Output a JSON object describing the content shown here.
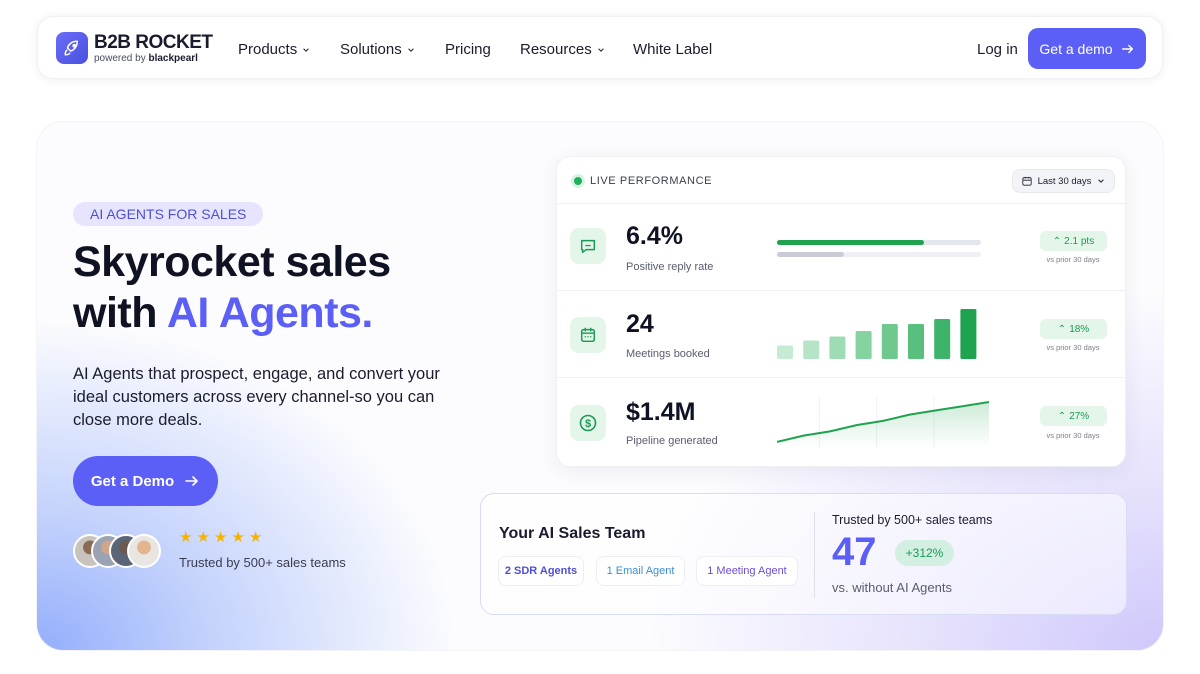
{
  "nav": {
    "logo_title": "B2B ROCKET",
    "logo_sub_prefix": "powered by ",
    "logo_sub_brand": "blackpearl",
    "items": [
      {
        "label": "Products",
        "dropdown": true
      },
      {
        "label": "Solutions",
        "dropdown": true
      },
      {
        "label": "Pricing",
        "dropdown": false
      },
      {
        "label": "Resources",
        "dropdown": true
      },
      {
        "label": "White Label",
        "dropdown": false
      }
    ],
    "login_label": "Log in",
    "demo_label": "Get a demo"
  },
  "hero": {
    "pill": "AI AGENTS FOR SALES",
    "headline_line1": "Skyrocket sales",
    "headline_line2_prefix": "with ",
    "headline_line2_accent": "AI Agents.",
    "lead": "AI Agents that prospect, engage, and convert your ideal customers across every channel-so you can close more deals.",
    "cta_label": "Get a Demo",
    "rating_stars": 5,
    "trusted_text": "Trusted by 500+ sales teams"
  },
  "performance": {
    "header": "LIVE PERFORMANCE",
    "date_range": "Last 30 days",
    "metrics": [
      {
        "value": "6.4%",
        "label": "Positive reply rate",
        "badge": "2.1 pts",
        "compare": "vs prior 30 days",
        "icon": "chat-icon",
        "current_progress": 0.72,
        "prior_progress": 0.33
      },
      {
        "value": "24",
        "label": "Meetings booked",
        "badge": "18%",
        "compare": "vs prior 30 days",
        "icon": "calendar-icon",
        "bar_levels": [
          0.27,
          0.37,
          0.45,
          0.56,
          0.7,
          0.7,
          0.8,
          1.0
        ]
      },
      {
        "value": "$1.4M",
        "label": "Pipeline generated",
        "badge": "27%",
        "compare": "vs prior 30 days",
        "icon": "dollar-icon",
        "trend": [
          0.05,
          0.2,
          0.3,
          0.45,
          0.55,
          0.7,
          0.8,
          0.9,
          1.0
        ]
      }
    ]
  },
  "team": {
    "title": "Your AI Sales Team",
    "chips": [
      {
        "label": "2 SDR Agents",
        "color": "#4f4fd6"
      },
      {
        "label": "1 Email Agent",
        "color": "#3b8fd6"
      },
      {
        "label": "1 Meeting Agent",
        "color": "#6b4fd6"
      }
    ],
    "trusted": "Trusted by 500+ sales teams",
    "big_number": "47",
    "change": "+312%",
    "comparison": "vs. without AI Agents"
  },
  "colors": {
    "accent": "#5b5ff5",
    "green": "#1fb15e",
    "pill_bg": "#e6e5fd"
  }
}
